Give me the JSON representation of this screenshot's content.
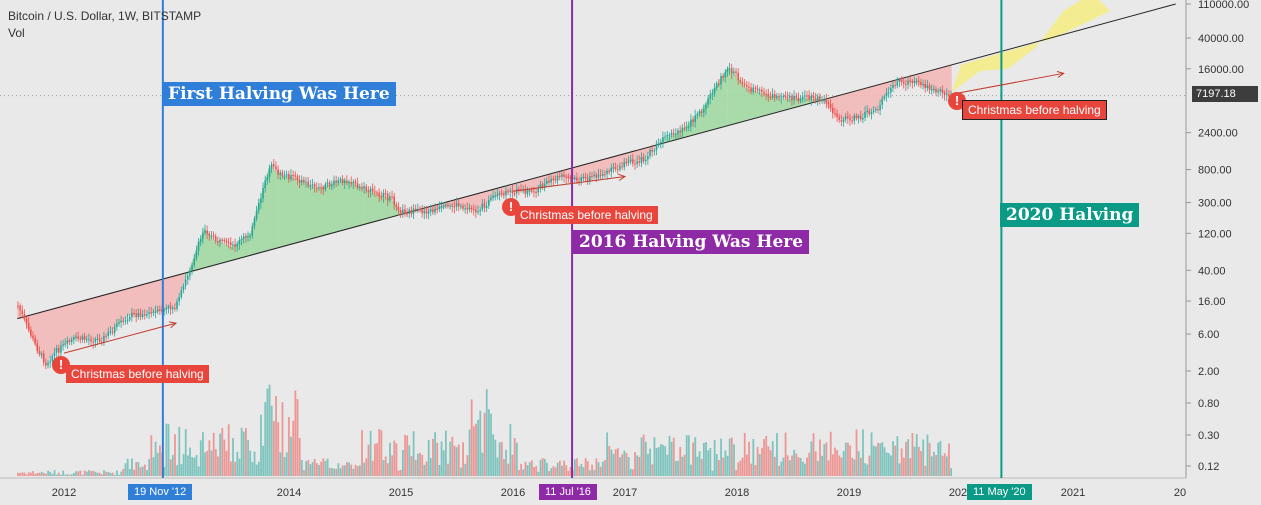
{
  "header": {
    "title": "Bitcoin / U.S. Dollar, 1W, BITSTAMP",
    "subtitle": "Vol"
  },
  "price_label": "7197.18",
  "annotations": {
    "first_halving": "First Halving Was Here",
    "second_halving": "2016 Halving Was Here",
    "third_halving": "2020 Halving",
    "xmas_1": "Christmas before halving",
    "xmas_2": "Christmas before halving",
    "xmas_3": "Christmas before halving",
    "bang": "!"
  },
  "date_chips": {
    "first": "19 Nov '12",
    "second": "11 Jul '16",
    "third": "11 May '20"
  },
  "colors": {
    "up": "#26a69a",
    "down": "#ef5350",
    "first_line": "#2f7ed8",
    "second_line": "#8e2aa6",
    "third_line": "#0a9a86",
    "fill_above": "#9ed79e",
    "fill_below": "#f2b5b5",
    "forecast": "#f5ec86"
  },
  "chart_data": {
    "type": "candlestick",
    "x_ticks": [
      "2012",
      "2014",
      "2015",
      "2016",
      "2017",
      "2018",
      "2019",
      "202",
      "2021",
      "20"
    ],
    "y_ticks": [
      "110000.00",
      "40000.00",
      "16000.00",
      "2400.00",
      "800.00",
      "300.00",
      "120.00",
      "40.00",
      "16.00",
      "6.00",
      "2.00"
    ],
    "vol_ticks": [
      "0.80",
      "0.30",
      "0.12"
    ],
    "y_scale": "log",
    "price_path": [
      [
        "2011-08",
        14
      ],
      [
        "2011-10",
        4
      ],
      [
        "2011-11",
        2.5
      ],
      [
        "2011-12",
        3.5
      ],
      [
        "2012-02",
        5.2
      ],
      [
        "2012-05",
        5.1
      ],
      [
        "2012-08",
        10.5
      ],
      [
        "2012-11",
        11.5
      ],
      [
        "2013-01",
        14
      ],
      [
        "2013-02",
        30
      ],
      [
        "2013-04",
        140
      ],
      [
        "2013-05",
        100
      ],
      [
        "2013-07",
        80
      ],
      [
        "2013-09",
        125
      ],
      [
        "2013-11",
        900
      ],
      [
        "2013-12",
        700
      ],
      [
        "2014-02",
        600
      ],
      [
        "2014-04",
        450
      ],
      [
        "2014-07",
        600
      ],
      [
        "2014-09",
        450
      ],
      [
        "2014-12",
        330
      ],
      [
        "2015-01",
        230
      ],
      [
        "2015-04",
        230
      ],
      [
        "2015-07",
        280
      ],
      [
        "2015-09",
        235
      ],
      [
        "2015-11",
        350
      ],
      [
        "2016-01",
        420
      ],
      [
        "2016-03",
        415
      ],
      [
        "2016-06",
        650
      ],
      [
        "2016-08",
        580
      ],
      [
        "2016-11",
        730
      ],
      [
        "2017-01",
        950
      ],
      [
        "2017-03",
        1100
      ],
      [
        "2017-05",
        1950
      ],
      [
        "2017-07",
        2500
      ],
      [
        "2017-09",
        4400
      ],
      [
        "2017-12",
        17000
      ],
      [
        "2018-02",
        9000
      ],
      [
        "2018-04",
        7500
      ],
      [
        "2018-06",
        6500
      ],
      [
        "2018-08",
        6700
      ],
      [
        "2018-10",
        6400
      ],
      [
        "2018-12",
        3600
      ],
      [
        "2019-02",
        3700
      ],
      [
        "2019-04",
        5000
      ],
      [
        "2019-06",
        11000
      ],
      [
        "2019-08",
        10500
      ],
      [
        "2019-10",
        8500
      ],
      [
        "2019-12",
        7197
      ]
    ],
    "trend_line": [
      [
        "2011-08",
        9.5
      ],
      [
        "2021-12",
        110000
      ]
    ],
    "forecast_region": [
      [
        "2019-12",
        8000
      ],
      [
        "2020-03",
        15000
      ],
      [
        "2020-06",
        16000
      ],
      [
        "2020-09",
        30000
      ],
      [
        "2020-12",
        90000
      ],
      [
        "2021-03",
        150000
      ],
      [
        "2021-05",
        90000
      ],
      [
        "2020-11",
        40000
      ],
      [
        "2020-05",
        25000
      ],
      [
        "2020-01",
        18000
      ]
    ],
    "halving_dates": [
      "2012-11-19",
      "2016-07-11",
      "2020-05-11"
    ],
    "arrows": [
      [
        [
          "2012-01",
          3.4
        ],
        [
          "2013-01",
          8.3
        ]
      ],
      [
        [
          "2016-01",
          420
        ],
        [
          "2017-01",
          650
        ]
      ],
      [
        [
          "2019-12",
          7500
        ],
        [
          "2020-12",
          14000
        ]
      ]
    ]
  }
}
